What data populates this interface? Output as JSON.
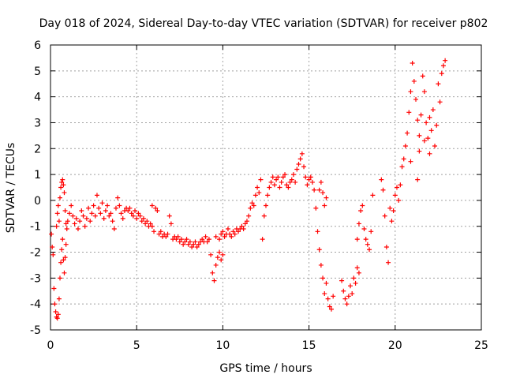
{
  "chart_data": {
    "type": "scatter",
    "title": "Day 018 of 2024, Sidereal Day-to-day VTEC variation (SDTVAR) for receiver p802",
    "xlabel": "GPS time / hours",
    "ylabel": "SDTVAR / TECUs",
    "xlim": [
      0,
      25
    ],
    "ylim": [
      -5,
      6
    ],
    "x_ticks": [
      0,
      5,
      10,
      15,
      20,
      25
    ],
    "y_ticks": [
      -5,
      -4,
      -3,
      -2,
      -1,
      0,
      1,
      2,
      3,
      4,
      5,
      6
    ],
    "x_tick_labels": [
      "0",
      "5",
      "10",
      "15",
      "20",
      "25"
    ],
    "y_tick_labels": [
      "-5",
      "-4",
      "-3",
      "-2",
      "-1",
      "0",
      "1",
      "2",
      "3",
      "4",
      "5",
      "6"
    ],
    "grid": true,
    "marker": "+",
    "series": [
      {
        "name": "SDTVAR",
        "color": "#ff0000",
        "points": [
          [
            0.05,
            -1.3
          ],
          [
            0.1,
            -1.8
          ],
          [
            0.15,
            -2.1
          ],
          [
            0.2,
            -3.4
          ],
          [
            0.25,
            -4.0
          ],
          [
            0.3,
            -4.3
          ],
          [
            0.35,
            -4.5
          ],
          [
            0.4,
            -4.55
          ],
          [
            0.45,
            -4.4
          ],
          [
            0.5,
            -3.8
          ],
          [
            0.55,
            -3.0
          ],
          [
            0.6,
            -2.4
          ],
          [
            0.65,
            -1.9
          ],
          [
            0.7,
            -1.5
          ],
          [
            0.75,
            -2.3
          ],
          [
            0.8,
            -2.8
          ],
          [
            0.85,
            -2.2
          ],
          [
            0.9,
            -1.7
          ],
          [
            0.35,
            -1.0
          ],
          [
            0.4,
            -0.5
          ],
          [
            0.45,
            -0.2
          ],
          [
            0.5,
            -0.8
          ],
          [
            0.55,
            0.1
          ],
          [
            0.6,
            0.5
          ],
          [
            0.65,
            0.7
          ],
          [
            0.7,
            0.8
          ],
          [
            0.75,
            0.6
          ],
          [
            0.8,
            0.3
          ],
          [
            0.85,
            -0.4
          ],
          [
            0.9,
            -0.9
          ],
          [
            0.95,
            -1.1
          ],
          [
            1.0,
            -0.8
          ],
          [
            1.1,
            -0.5
          ],
          [
            1.2,
            -0.2
          ],
          [
            1.3,
            -0.6
          ],
          [
            1.4,
            -0.9
          ],
          [
            1.5,
            -0.7
          ],
          [
            1.6,
            -1.1
          ],
          [
            1.7,
            -0.8
          ],
          [
            1.8,
            -0.4
          ],
          [
            1.9,
            -0.6
          ],
          [
            2.0,
            -1.0
          ],
          [
            2.1,
            -0.7
          ],
          [
            2.2,
            -0.3
          ],
          [
            2.3,
            -0.8
          ],
          [
            2.4,
            -0.5
          ],
          [
            2.5,
            -0.2
          ],
          [
            2.6,
            -0.6
          ],
          [
            2.7,
            0.2
          ],
          [
            2.8,
            -0.3
          ],
          [
            2.9,
            -0.5
          ],
          [
            3.0,
            -0.1
          ],
          [
            3.1,
            -0.7
          ],
          [
            3.2,
            -0.4
          ],
          [
            3.3,
            -0.2
          ],
          [
            3.4,
            -0.6
          ],
          [
            3.5,
            -0.5
          ],
          [
            3.6,
            -0.8
          ],
          [
            3.7,
            -1.1
          ],
          [
            3.8,
            -0.3
          ],
          [
            3.9,
            0.1
          ],
          [
            4.0,
            -0.2
          ],
          [
            4.1,
            -0.5
          ],
          [
            4.2,
            -0.7
          ],
          [
            4.3,
            -0.4
          ],
          [
            4.4,
            -0.3
          ],
          [
            4.5,
            -0.4
          ],
          [
            4.6,
            -0.3
          ],
          [
            4.7,
            -0.5
          ],
          [
            4.8,
            -0.6
          ],
          [
            4.9,
            -0.4
          ],
          [
            5.0,
            -0.7
          ],
          [
            5.1,
            -0.5
          ],
          [
            5.2,
            -0.6
          ],
          [
            5.3,
            -0.8
          ],
          [
            5.4,
            -0.7
          ],
          [
            5.5,
            -0.9
          ],
          [
            5.6,
            -0.8
          ],
          [
            5.7,
            -1.0
          ],
          [
            5.8,
            -0.9
          ],
          [
            5.9,
            -1.0
          ],
          [
            6.0,
            -1.2
          ],
          [
            5.9,
            -0.2
          ],
          [
            6.1,
            -0.3
          ],
          [
            6.2,
            -0.4
          ],
          [
            6.3,
            -1.3
          ],
          [
            6.4,
            -1.2
          ],
          [
            6.5,
            -1.4
          ],
          [
            6.6,
            -1.3
          ],
          [
            6.7,
            -1.4
          ],
          [
            6.8,
            -1.3
          ],
          [
            6.9,
            -0.6
          ],
          [
            7.0,
            -0.9
          ],
          [
            7.1,
            -1.5
          ],
          [
            7.2,
            -1.4
          ],
          [
            7.3,
            -1.5
          ],
          [
            7.4,
            -1.4
          ],
          [
            7.5,
            -1.6
          ],
          [
            7.6,
            -1.5
          ],
          [
            7.7,
            -1.7
          ],
          [
            7.8,
            -1.6
          ],
          [
            7.9,
            -1.5
          ],
          [
            8.0,
            -1.7
          ],
          [
            8.1,
            -1.6
          ],
          [
            8.2,
            -1.8
          ],
          [
            8.3,
            -1.7
          ],
          [
            8.4,
            -1.6
          ],
          [
            8.5,
            -1.8
          ],
          [
            8.6,
            -1.7
          ],
          [
            8.7,
            -1.6
          ],
          [
            8.8,
            -1.5
          ],
          [
            8.9,
            -1.6
          ],
          [
            9.0,
            -1.4
          ],
          [
            9.1,
            -1.6
          ],
          [
            9.2,
            -1.5
          ],
          [
            9.3,
            -2.1
          ],
          [
            9.4,
            -2.8
          ],
          [
            9.5,
            -3.1
          ],
          [
            9.6,
            -2.5
          ],
          [
            9.7,
            -2.2
          ],
          [
            9.8,
            -2.0
          ],
          [
            9.9,
            -2.3
          ],
          [
            10.0,
            -2.1
          ],
          [
            9.6,
            -1.4
          ],
          [
            9.8,
            -1.5
          ],
          [
            9.9,
            -1.3
          ],
          [
            10.0,
            -1.2
          ],
          [
            10.1,
            -1.4
          ],
          [
            10.2,
            -1.3
          ],
          [
            10.3,
            -1.1
          ],
          [
            10.4,
            -1.3
          ],
          [
            10.5,
            -1.4
          ],
          [
            10.6,
            -1.2
          ],
          [
            10.7,
            -1.3
          ],
          [
            10.8,
            -1.1
          ],
          [
            10.9,
            -1.2
          ],
          [
            11.0,
            -1.1
          ],
          [
            11.1,
            -1.0
          ],
          [
            11.2,
            -1.1
          ],
          [
            11.3,
            -0.9
          ],
          [
            11.4,
            -0.8
          ],
          [
            11.5,
            -0.6
          ],
          [
            11.6,
            -0.3
          ],
          [
            11.7,
            -0.1
          ],
          [
            11.8,
            -0.2
          ],
          [
            11.9,
            0.2
          ],
          [
            12.0,
            0.5
          ],
          [
            12.1,
            0.3
          ],
          [
            12.2,
            0.8
          ],
          [
            12.3,
            -1.5
          ],
          [
            12.4,
            -0.6
          ],
          [
            12.5,
            -0.2
          ],
          [
            12.6,
            0.2
          ],
          [
            12.7,
            0.5
          ],
          [
            12.8,
            0.7
          ],
          [
            12.9,
            0.9
          ],
          [
            13.0,
            0.6
          ],
          [
            13.1,
            0.8
          ],
          [
            13.2,
            0.9
          ],
          [
            13.3,
            0.5
          ],
          [
            13.4,
            0.7
          ],
          [
            13.5,
            0.9
          ],
          [
            13.6,
            1.0
          ],
          [
            13.7,
            0.6
          ],
          [
            13.8,
            0.5
          ],
          [
            13.9,
            0.7
          ],
          [
            14.0,
            0.8
          ],
          [
            14.1,
            1.0
          ],
          [
            14.2,
            0.7
          ],
          [
            14.3,
            1.2
          ],
          [
            14.4,
            1.4
          ],
          [
            14.5,
            1.6
          ],
          [
            14.6,
            1.8
          ],
          [
            14.7,
            1.3
          ],
          [
            14.8,
            0.9
          ],
          [
            14.9,
            0.6
          ],
          [
            15.0,
            0.8
          ],
          [
            15.1,
            0.9
          ],
          [
            15.2,
            0.7
          ],
          [
            15.3,
            0.4
          ],
          [
            15.4,
            -0.3
          ],
          [
            15.5,
            -1.2
          ],
          [
            15.6,
            -1.9
          ],
          [
            15.7,
            -2.5
          ],
          [
            15.8,
            -3.0
          ],
          [
            15.9,
            -3.6
          ],
          [
            16.0,
            -3.2
          ],
          [
            16.1,
            -3.8
          ],
          [
            16.2,
            -4.1
          ],
          [
            16.3,
            -4.2
          ],
          [
            16.4,
            -3.7
          ],
          [
            15.6,
            0.4
          ],
          [
            15.7,
            0.7
          ],
          [
            15.8,
            0.3
          ],
          [
            15.9,
            -0.2
          ],
          [
            16.0,
            0.1
          ],
          [
            16.9,
            -3.1
          ],
          [
            17.0,
            -3.5
          ],
          [
            17.1,
            -3.8
          ],
          [
            17.2,
            -4.0
          ],
          [
            17.3,
            -3.7
          ],
          [
            17.4,
            -3.3
          ],
          [
            17.5,
            -3.6
          ],
          [
            17.6,
            -3.0
          ],
          [
            17.7,
            -3.2
          ],
          [
            17.8,
            -2.6
          ],
          [
            17.9,
            -2.8
          ],
          [
            17.8,
            -1.5
          ],
          [
            17.9,
            -0.9
          ],
          [
            18.0,
            -0.4
          ],
          [
            18.1,
            -0.2
          ],
          [
            18.2,
            -1.1
          ],
          [
            18.3,
            -1.5
          ],
          [
            18.4,
            -1.7
          ],
          [
            18.5,
            -1.9
          ],
          [
            18.6,
            -1.2
          ],
          [
            18.7,
            0.2
          ],
          [
            19.2,
            0.8
          ],
          [
            19.3,
            0.4
          ],
          [
            19.4,
            -0.6
          ],
          [
            19.5,
            -1.8
          ],
          [
            19.6,
            -2.4
          ],
          [
            19.7,
            -0.3
          ],
          [
            19.8,
            -0.8
          ],
          [
            19.9,
            -0.4
          ],
          [
            20.0,
            0.2
          ],
          [
            20.1,
            0.5
          ],
          [
            20.2,
            0.0
          ],
          [
            20.3,
            0.6
          ],
          [
            20.4,
            1.3
          ],
          [
            20.5,
            1.6
          ],
          [
            20.6,
            2.1
          ],
          [
            20.7,
            2.6
          ],
          [
            20.8,
            3.4
          ],
          [
            20.9,
            4.2
          ],
          [
            21.0,
            5.3
          ],
          [
            21.1,
            4.6
          ],
          [
            21.2,
            3.9
          ],
          [
            21.3,
            3.1
          ],
          [
            21.4,
            2.5
          ],
          [
            21.5,
            3.3
          ],
          [
            21.6,
            4.8
          ],
          [
            21.7,
            4.2
          ],
          [
            21.8,
            3.0
          ],
          [
            21.9,
            2.4
          ],
          [
            22.0,
            1.8
          ],
          [
            22.1,
            2.7
          ],
          [
            22.2,
            3.5
          ],
          [
            22.3,
            2.1
          ],
          [
            22.4,
            2.9
          ],
          [
            22.5,
            4.5
          ],
          [
            22.6,
            3.8
          ],
          [
            22.7,
            4.9
          ],
          [
            22.8,
            5.2
          ],
          [
            22.9,
            5.4
          ],
          [
            21.4,
            1.9
          ],
          [
            21.7,
            2.3
          ],
          [
            22.0,
            3.2
          ],
          [
            20.9,
            1.5
          ],
          [
            21.3,
            0.8
          ]
        ]
      }
    ]
  }
}
